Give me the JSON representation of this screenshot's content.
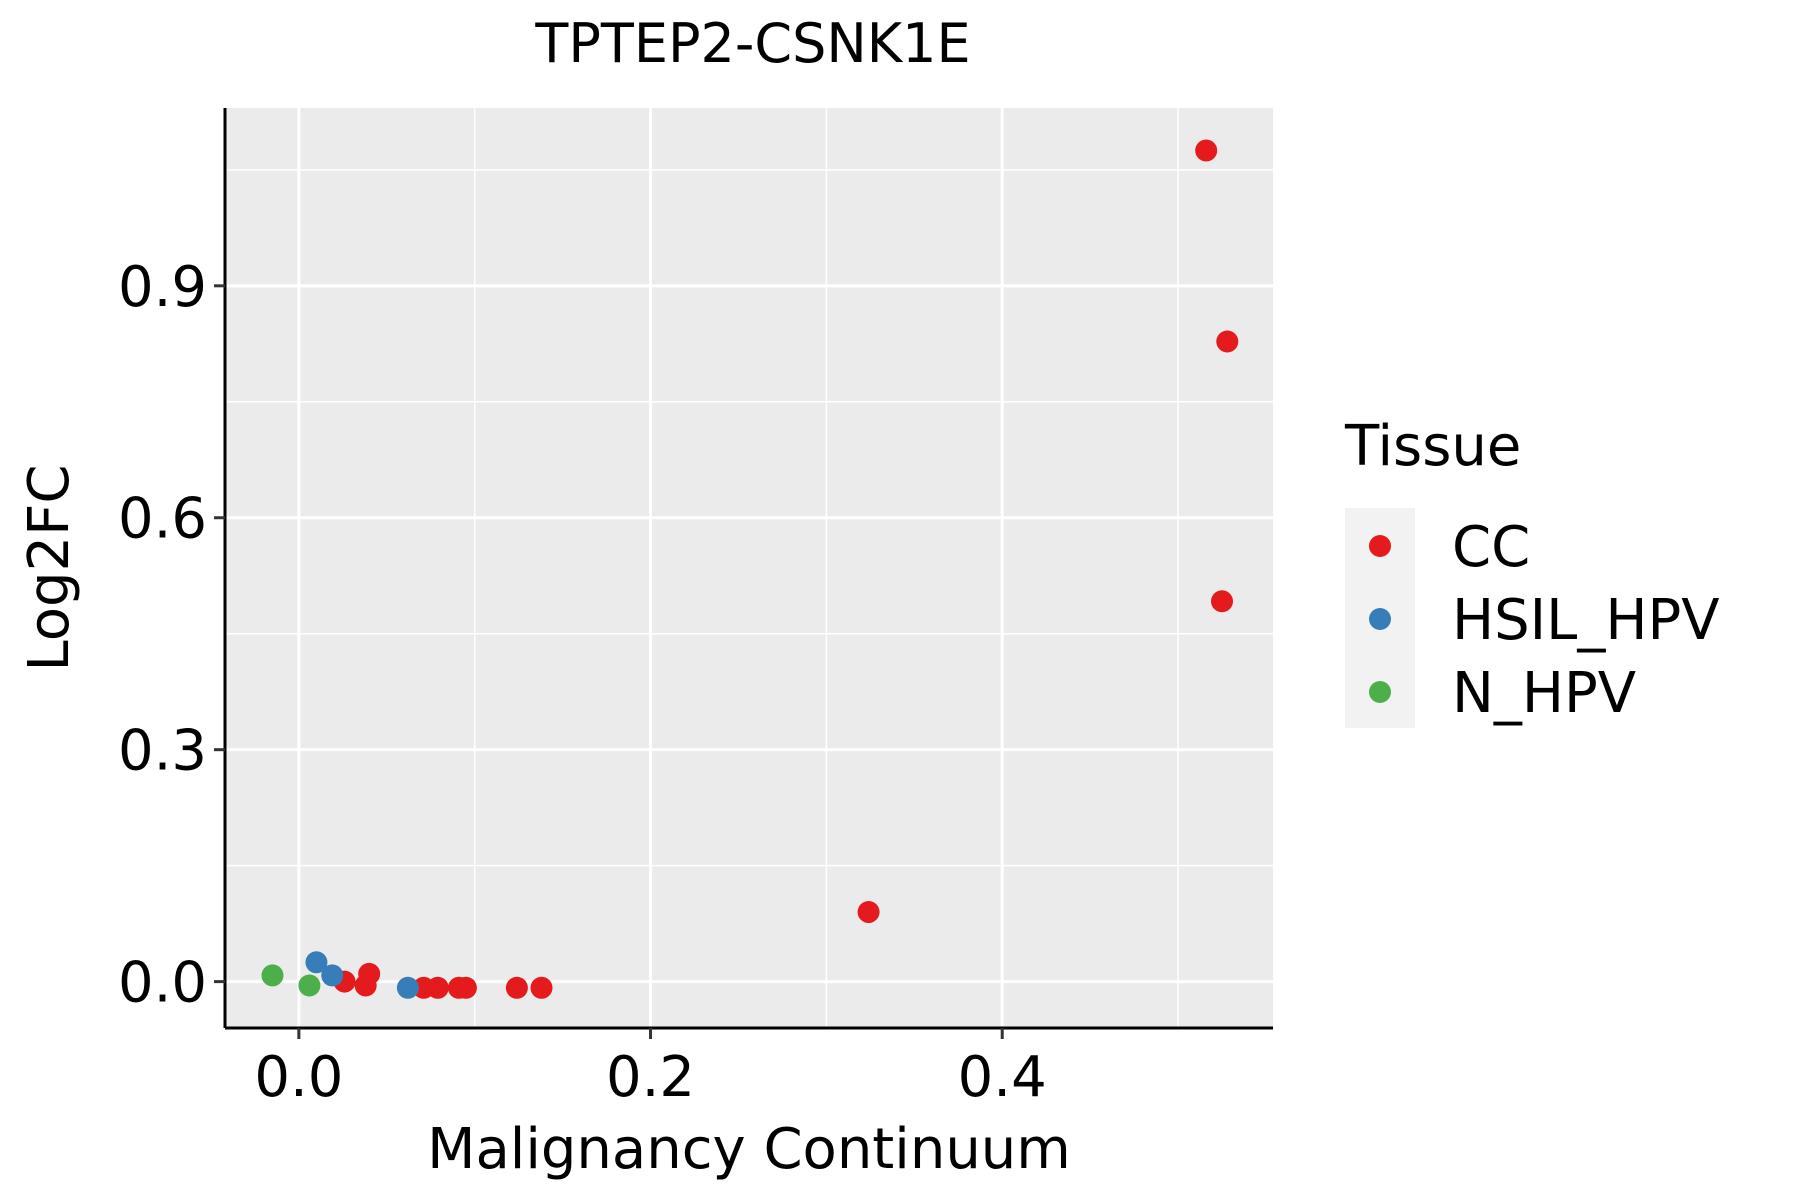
{
  "chart_data": {
    "type": "scatter",
    "title": "TPTEP2-CSNK1E",
    "xlabel": "Malignancy Continuum",
    "ylabel": "Log2FC",
    "xlim": [
      -0.042,
      0.554
    ],
    "ylim": [
      -0.06,
      1.13
    ],
    "x_ticks": [
      0.0,
      0.2,
      0.4
    ],
    "x_tick_labels": [
      "0.0",
      "0.2",
      "0.4"
    ],
    "y_ticks": [
      0.0,
      0.3,
      0.6,
      0.9
    ],
    "y_tick_labels": [
      "0.0",
      "0.3",
      "0.6",
      "0.9"
    ],
    "grid": true,
    "legend": {
      "title": "Tissue",
      "position": "right",
      "entries": [
        "CC",
        "HSIL_HPV",
        "N_HPV"
      ]
    },
    "series": [
      {
        "name": "CC",
        "color": "#E41A1C",
        "points": [
          {
            "x": 0.026,
            "y": 0.0
          },
          {
            "x": 0.038,
            "y": -0.005
          },
          {
            "x": 0.04,
            "y": 0.01
          },
          {
            "x": 0.071,
            "y": -0.008
          },
          {
            "x": 0.079,
            "y": -0.008
          },
          {
            "x": 0.091,
            "y": -0.008
          },
          {
            "x": 0.095,
            "y": -0.008
          },
          {
            "x": 0.124,
            "y": -0.008
          },
          {
            "x": 0.138,
            "y": -0.008
          },
          {
            "x": 0.324,
            "y": 0.09
          },
          {
            "x": 0.516,
            "y": 1.075
          },
          {
            "x": 0.528,
            "y": 0.828
          },
          {
            "x": 0.525,
            "y": 0.492
          }
        ]
      },
      {
        "name": "HSIL_HPV",
        "color": "#377EB8",
        "points": [
          {
            "x": 0.01,
            "y": 0.025
          },
          {
            "x": 0.019,
            "y": 0.008
          },
          {
            "x": 0.062,
            "y": -0.008
          }
        ]
      },
      {
        "name": "N_HPV",
        "color": "#4DAF4A",
        "points": [
          {
            "x": -0.015,
            "y": 0.008
          },
          {
            "x": 0.006,
            "y": -0.005
          }
        ]
      }
    ]
  }
}
